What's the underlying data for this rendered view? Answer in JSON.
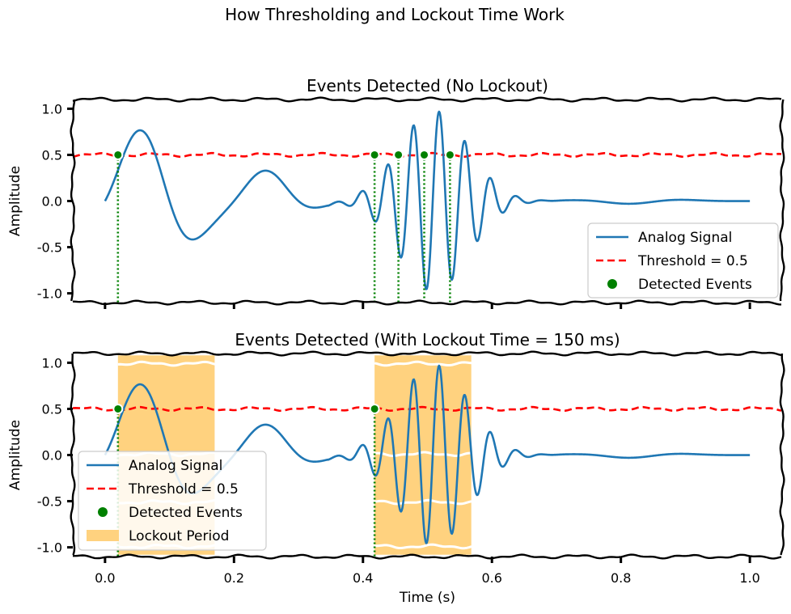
{
  "suptitle": "How Thresholding and Lockout Time Work",
  "legend_labels": {
    "signal": "Analog Signal",
    "threshold": "Threshold = 0.5",
    "events": "Detected Events",
    "lockout": "Lockout Period"
  },
  "colors": {
    "signal": "#1f77b4",
    "threshold": "#ff0000",
    "events": "#008000",
    "lockout": "#ffd27f"
  },
  "chart_data": [
    {
      "type": "line",
      "title": "Events Detected (No Lockout)",
      "xlabel": "",
      "ylabel": "Amplitude",
      "xlim": [
        -0.05,
        1.05
      ],
      "ylim": [
        -1.1,
        1.1
      ],
      "x_ticks": [
        0.0,
        0.2,
        0.4,
        0.6,
        0.8,
        1.0
      ],
      "x_tick_labels_visible": false,
      "y_ticks": [
        "1.0",
        "0.5",
        "0.0",
        "-0.5",
        "-1.0"
      ],
      "threshold": 0.5,
      "series": [
        {
          "name": "Analog Signal",
          "kind": "signal"
        },
        {
          "name": "Threshold = 0.5",
          "kind": "threshold",
          "value": 0.5
        },
        {
          "name": "Detected Events",
          "kind": "events",
          "x": [
            0.02,
            0.418,
            0.455,
            0.495,
            0.535
          ],
          "y": [
            0.5,
            0.5,
            0.5,
            0.5,
            0.5
          ]
        }
      ],
      "legend": "lower right"
    },
    {
      "type": "line",
      "title": "Events Detected (With Lockout Time = 150 ms)",
      "xlabel": "Time (s)",
      "ylabel": "Amplitude",
      "xlim": [
        -0.05,
        1.05
      ],
      "ylim": [
        -1.1,
        1.1
      ],
      "x_ticks": [
        0.0,
        0.2,
        0.4,
        0.6,
        0.8,
        1.0
      ],
      "x_tick_labels": [
        "0.0",
        "0.2",
        "0.4",
        "0.6",
        "0.8",
        "1.0"
      ],
      "y_ticks": [
        "1.0",
        "0.5",
        "0.0",
        "-0.5",
        "-1.0"
      ],
      "threshold": 0.5,
      "lockout_seconds": 0.15,
      "series": [
        {
          "name": "Analog Signal",
          "kind": "signal"
        },
        {
          "name": "Threshold = 0.5",
          "kind": "threshold",
          "value": 0.5
        },
        {
          "name": "Detected Events",
          "kind": "events",
          "x": [
            0.02,
            0.418
          ],
          "y": [
            0.5,
            0.5
          ]
        },
        {
          "name": "Lockout Period",
          "kind": "lockout",
          "spans": [
            [
              0.02,
              0.17
            ],
            [
              0.418,
              0.568
            ]
          ]
        }
      ],
      "legend": "lower left"
    }
  ]
}
